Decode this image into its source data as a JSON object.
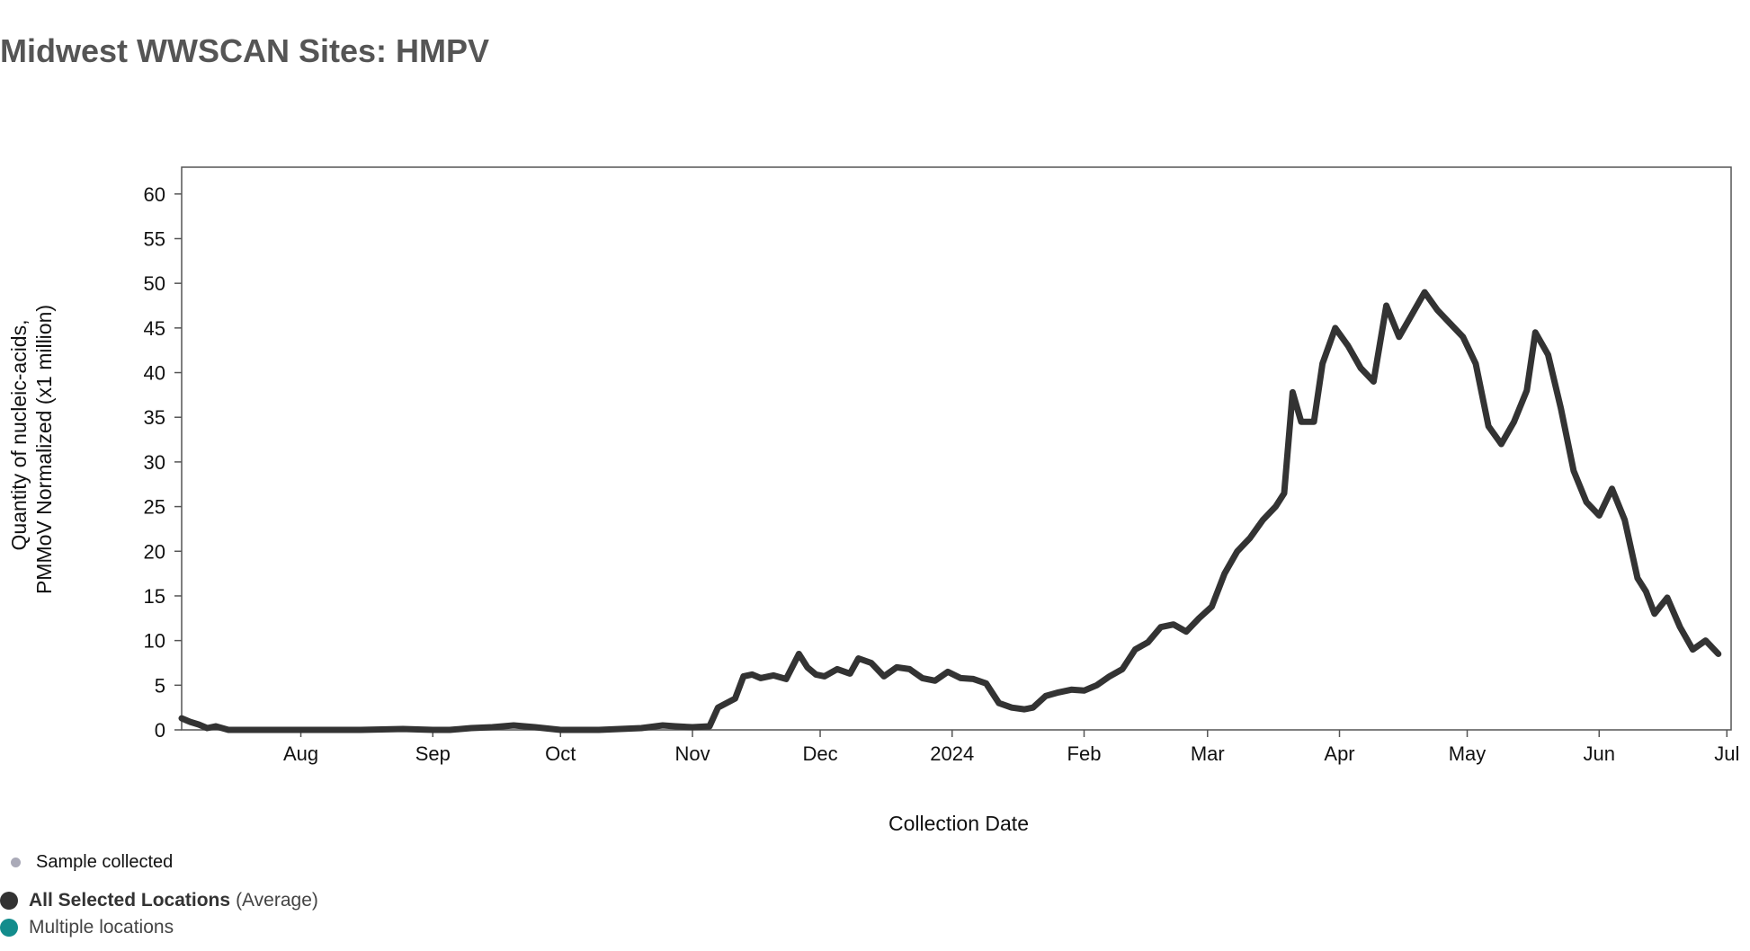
{
  "title": "Midwest WWSCAN Sites: HMPV",
  "chart_data": {
    "type": "line",
    "title": "Midwest WWSCAN Sites: HMPV",
    "xlabel": "Collection Date",
    "ylabel_lines": [
      "Quantity of nucleic-acids,",
      "PMMoV Normalized (x1 million)"
    ],
    "ylim": [
      0,
      63
    ],
    "yticks": [
      0,
      5,
      10,
      15,
      20,
      25,
      30,
      35,
      40,
      45,
      50,
      55,
      60
    ],
    "xlim": [
      "2023-07-04",
      "2024-07-02"
    ],
    "xticks": [
      {
        "date": "2023-08-01",
        "label": "Aug"
      },
      {
        "date": "2023-09-01",
        "label": "Sep"
      },
      {
        "date": "2023-10-01",
        "label": "Oct"
      },
      {
        "date": "2023-11-01",
        "label": "Nov"
      },
      {
        "date": "2023-12-01",
        "label": "Dec"
      },
      {
        "date": "2024-01-01",
        "label": "2024"
      },
      {
        "date": "2024-02-01",
        "label": "Feb"
      },
      {
        "date": "2024-03-01",
        "label": "Mar"
      },
      {
        "date": "2024-04-01",
        "label": "Apr"
      },
      {
        "date": "2024-05-01",
        "label": "May"
      },
      {
        "date": "2024-06-01",
        "label": "Jun"
      },
      {
        "date": "2024-07-01",
        "label": "Jul"
      }
    ],
    "grid": false,
    "series": [
      {
        "name": "All Selected Locations",
        "color": "#333333",
        "x": [
          "2023-07-04",
          "2023-07-06",
          "2023-07-08",
          "2023-07-10",
          "2023-07-12",
          "2023-07-15",
          "2023-07-20",
          "2023-07-30",
          "2023-08-15",
          "2023-08-25",
          "2023-09-01",
          "2023-09-05",
          "2023-09-10",
          "2023-09-15",
          "2023-09-20",
          "2023-09-25",
          "2023-10-01",
          "2023-10-10",
          "2023-10-20",
          "2023-10-25",
          "2023-10-28",
          "2023-11-01",
          "2023-11-05",
          "2023-11-07",
          "2023-11-09",
          "2023-11-11",
          "2023-11-13",
          "2023-11-15",
          "2023-11-17",
          "2023-11-20",
          "2023-11-23",
          "2023-11-26",
          "2023-11-28",
          "2023-11-30",
          "2023-12-02",
          "2023-12-05",
          "2023-12-08",
          "2023-12-10",
          "2023-12-13",
          "2023-12-16",
          "2023-12-19",
          "2023-12-22",
          "2023-12-25",
          "2023-12-28",
          "2023-12-31",
          "2024-01-03",
          "2024-01-06",
          "2024-01-09",
          "2024-01-12",
          "2024-01-15",
          "2024-01-18",
          "2024-01-20",
          "2024-01-23",
          "2024-01-26",
          "2024-01-29",
          "2024-02-01",
          "2024-02-04",
          "2024-02-07",
          "2024-02-10",
          "2024-02-13",
          "2024-02-16",
          "2024-02-19",
          "2024-02-22",
          "2024-02-25",
          "2024-02-28",
          "2024-03-02",
          "2024-03-05",
          "2024-03-08",
          "2024-03-11",
          "2024-03-14",
          "2024-03-17",
          "2024-03-19",
          "2024-03-21",
          "2024-03-23",
          "2024-03-26",
          "2024-03-28",
          "2024-03-31",
          "2024-04-03",
          "2024-04-06",
          "2024-04-09",
          "2024-04-12",
          "2024-04-15",
          "2024-04-18",
          "2024-04-21",
          "2024-04-24",
          "2024-04-27",
          "2024-04-30",
          "2024-05-03",
          "2024-05-06",
          "2024-05-09",
          "2024-05-12",
          "2024-05-15",
          "2024-05-17",
          "2024-05-20",
          "2024-05-23",
          "2024-05-26",
          "2024-05-29",
          "2024-06-01",
          "2024-06-04",
          "2024-06-07",
          "2024-06-10",
          "2024-06-12",
          "2024-06-14",
          "2024-06-17",
          "2024-06-20",
          "2024-06-23",
          "2024-06-26",
          "2024-06-29"
        ],
        "y": [
          1.3,
          0.9,
          0.6,
          0.2,
          0.4,
          0.0,
          0.0,
          0.0,
          0.0,
          0.1,
          0.0,
          0.0,
          0.2,
          0.3,
          0.5,
          0.3,
          0.0,
          0.0,
          0.2,
          0.5,
          0.4,
          0.3,
          0.4,
          2.5,
          3.0,
          3.5,
          6.0,
          6.2,
          5.8,
          6.1,
          5.7,
          8.5,
          7.0,
          6.2,
          6.0,
          6.8,
          6.3,
          8.0,
          7.5,
          6.0,
          7.0,
          6.8,
          5.8,
          5.5,
          6.5,
          5.8,
          5.7,
          5.2,
          3.0,
          2.5,
          2.3,
          2.5,
          3.8,
          4.2,
          4.5,
          4.4,
          5.0,
          6.0,
          6.8,
          9.0,
          9.8,
          11.5,
          11.8,
          11.0,
          12.5,
          13.8,
          17.5,
          20.0,
          21.5,
          23.5,
          25.0,
          26.5,
          37.8,
          34.5,
          34.5,
          41.0,
          45.0,
          43.0,
          40.5,
          39.0,
          47.5,
          44.0,
          46.5,
          49.0,
          47.0,
          45.5,
          44.0,
          41.0,
          34.0,
          32.0,
          34.5,
          38.0,
          44.5,
          42.0,
          36.0,
          29.0,
          25.5,
          24.0,
          27.0,
          23.5,
          17.0,
          15.5,
          13.0,
          14.8,
          11.5,
          9.0,
          10.0,
          8.5
        ]
      }
    ],
    "legend": {
      "placement": "bottom-left",
      "items": [
        {
          "label": "Sample collected",
          "color": "#aaaab8"
        },
        {
          "label": "All Selected Locations",
          "suffix": "(Average)",
          "color": "#333333"
        },
        {
          "label": "Multiple locations",
          "color": "#138c8c"
        }
      ]
    }
  }
}
